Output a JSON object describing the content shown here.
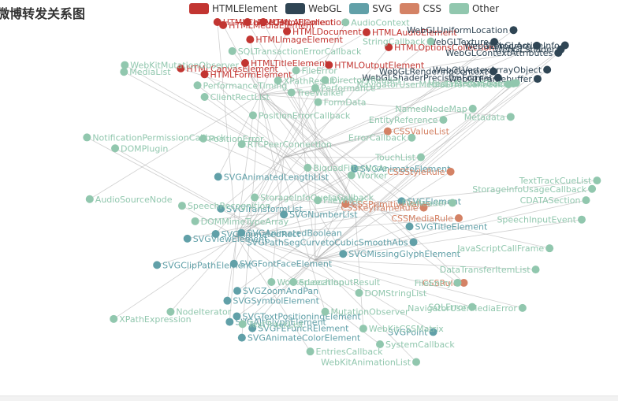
{
  "chart_data": {
    "type": "graph",
    "title": "微博转发关系图",
    "legend": [
      {
        "name": "HTMLElement",
        "color": "#c23531"
      },
      {
        "name": "WebGL",
        "color": "#2f4554"
      },
      {
        "name": "SVG",
        "color": "#61a0a8"
      },
      {
        "name": "CSS",
        "color": "#d48265"
      },
      {
        "name": "Other",
        "color": "#91c7ae"
      }
    ],
    "nodes": [
      {
        "name": "HTMLOptionsCollection",
        "category": 0
      },
      {
        "name": "HTMLTitleElement",
        "category": 0
      },
      {
        "name": "HTMLHtmlElement",
        "category": 0
      },
      {
        "name": "HTMLFormElement",
        "category": 0
      },
      {
        "name": "HTMLAllCollection",
        "category": 0
      },
      {
        "name": "HTMLCollection",
        "category": 0
      },
      {
        "name": "HTMLDocument",
        "category": 0
      },
      {
        "name": "HTMLCanvasElement",
        "category": 0
      },
      {
        "name": "HTMLImageElement",
        "category": 0
      },
      {
        "name": "HTMLMediaElement",
        "category": 0
      },
      {
        "name": "HTMLAudioElement",
        "category": 0
      },
      {
        "name": "HTMLOutputElement",
        "category": 0
      },
      {
        "name": "WebGLShader",
        "category": 1
      },
      {
        "name": "WebGLTexture",
        "category": 1
      },
      {
        "name": "WebGLActiveInfo",
        "category": 1
      },
      {
        "name": "WebGLShaderPrecisionFormat",
        "category": 1
      },
      {
        "name": "WebGLProgram",
        "category": 1
      },
      {
        "name": "WebGLFramebuffer",
        "category": 1
      },
      {
        "name": "WebGLRenderingContext",
        "category": 1
      },
      {
        "name": "WebGLContextAttributes",
        "category": 1
      },
      {
        "name": "WebGLUniformLocation",
        "category": 1
      },
      {
        "name": "WebGLVertexArrayObject",
        "category": 1
      },
      {
        "name": "SVGViewElement",
        "category": 2
      },
      {
        "name": "SVGZoomAndPan",
        "category": 2
      },
      {
        "name": "SVGMissingGlyphElement",
        "category": 2
      },
      {
        "name": "SVGTextPositioningElement",
        "category": 2
      },
      {
        "name": "SVGAnimatedLengthList",
        "category": 2
      },
      {
        "name": "SVGFontFaceElement",
        "category": 2
      },
      {
        "name": "SVGSymbolElement",
        "category": 2
      },
      {
        "name": "SVGAltGlyphElement",
        "category": 2
      },
      {
        "name": "SVGAnimateColorElement",
        "category": 2
      },
      {
        "name": "SVGAnimatedBoolean",
        "category": 2
      },
      {
        "name": "SVGTitleElement",
        "category": 2
      },
      {
        "name": "SVGElement",
        "category": 2
      },
      {
        "name": "SVGTransformList",
        "category": 2
      },
      {
        "name": "SVGClipPathElement",
        "category": 2
      },
      {
        "name": "SVGPathSegCurvetoCubicSmoothAbs",
        "category": 2
      },
      {
        "name": "SVGNumberList",
        "category": 2
      },
      {
        "name": "SVGAnimatedRect",
        "category": 2
      },
      {
        "name": "SVGFEFuncRElement",
        "category": 2
      },
      {
        "name": "SVGAnimateElement",
        "category": 2
      },
      {
        "name": "SVGPoint",
        "category": 2
      },
      {
        "name": "CSSMediaRule",
        "category": 3
      },
      {
        "name": "CSSKeyframeRule",
        "category": 3
      },
      {
        "name": "CSSStyleRule",
        "category": 3
      },
      {
        "name": "CSSValueList",
        "category": 3
      },
      {
        "name": "CSSPrimitiveValue",
        "category": 3
      },
      {
        "name": "CSSRule",
        "category": 3
      },
      {
        "name": "MediaStreamTrack",
        "category": 4
      },
      {
        "name": "MediaSource",
        "category": 4
      },
      {
        "name": "FormData",
        "category": 4
      },
      {
        "name": "FileReader",
        "category": 4
      },
      {
        "name": "FileWriter",
        "category": 4
      },
      {
        "name": "PositionError",
        "category": 4
      },
      {
        "name": "FileError",
        "category": 4
      },
      {
        "name": "PositionErrorCallback",
        "category": 4
      },
      {
        "name": "ErrorCallback",
        "category": 4
      },
      {
        "name": "XPathExpression",
        "category": 4
      },
      {
        "name": "FileEntry",
        "category": 4
      },
      {
        "name": "CDATASection",
        "category": 4
      },
      {
        "name": "WebKitMutationObserver",
        "category": 4
      },
      {
        "name": "SpeechInputEvent",
        "category": 4
      },
      {
        "name": "WebKitAnimationList",
        "category": 4
      },
      {
        "name": "NotificationPermissionCallback",
        "category": 4
      },
      {
        "name": "SpeechInputResult",
        "category": 4
      },
      {
        "name": "WebKitCSSMatrix",
        "category": 4
      },
      {
        "name": "JavaScriptCallFrame",
        "category": 4
      },
      {
        "name": "SQLTransactionErrorCallback",
        "category": 4
      },
      {
        "name": "StorageInfoQuotaCallback",
        "category": 4
      },
      {
        "name": "NavigatorUserMediaError",
        "category": 4
      },
      {
        "name": "SQLError",
        "category": 4
      },
      {
        "name": "Worker",
        "category": 4
      },
      {
        "name": "NavigatorUserMediaErrorCallback",
        "category": 4
      },
      {
        "name": "StorageInfoUsageCallback",
        "category": 4
      },
      {
        "name": "DirectoryReader",
        "category": 4
      },
      {
        "name": "EntriesCallback",
        "category": 4
      },
      {
        "name": "EntityReference",
        "category": 4
      },
      {
        "name": "MutationObserver",
        "category": 4
      },
      {
        "name": "NamedNodeMap",
        "category": 4
      },
      {
        "name": "NodeIterator",
        "category": 4
      },
      {
        "name": "TreeWalker",
        "category": 4
      },
      {
        "name": "XPathResult",
        "category": 4
      },
      {
        "name": "DOMStringList",
        "category": 4
      },
      {
        "name": "TextTrackCueList",
        "category": 4
      },
      {
        "name": "MediaList",
        "category": 4
      },
      {
        "name": "TouchList",
        "category": 4
      },
      {
        "name": "RTCPeerConnection",
        "category": 4
      },
      {
        "name": "AudioSourceNode",
        "category": 4
      },
      {
        "name": "AudioContext",
        "category": 4
      },
      {
        "name": "SpeechRecognition",
        "category": 4
      },
      {
        "name": "DOMMimeTypeArray",
        "category": 4
      },
      {
        "name": "PerformanceTiming",
        "category": 4
      },
      {
        "name": "DOMPlugin",
        "category": 4
      },
      {
        "name": "Performance",
        "category": 4
      },
      {
        "name": "BiquadFilterNode",
        "category": 4
      },
      {
        "name": "TextTrackList",
        "category": 4
      },
      {
        "name": "SystemCallback",
        "category": 4
      },
      {
        "name": "WorkerLocation",
        "category": 4
      },
      {
        "name": "ClientRectList",
        "category": 4
      },
      {
        "name": "DataTransferItemList",
        "category": 4
      },
      {
        "name": "StringCallback",
        "category": 4
      },
      {
        "name": "Metadata",
        "category": 4
      }
    ]
  }
}
